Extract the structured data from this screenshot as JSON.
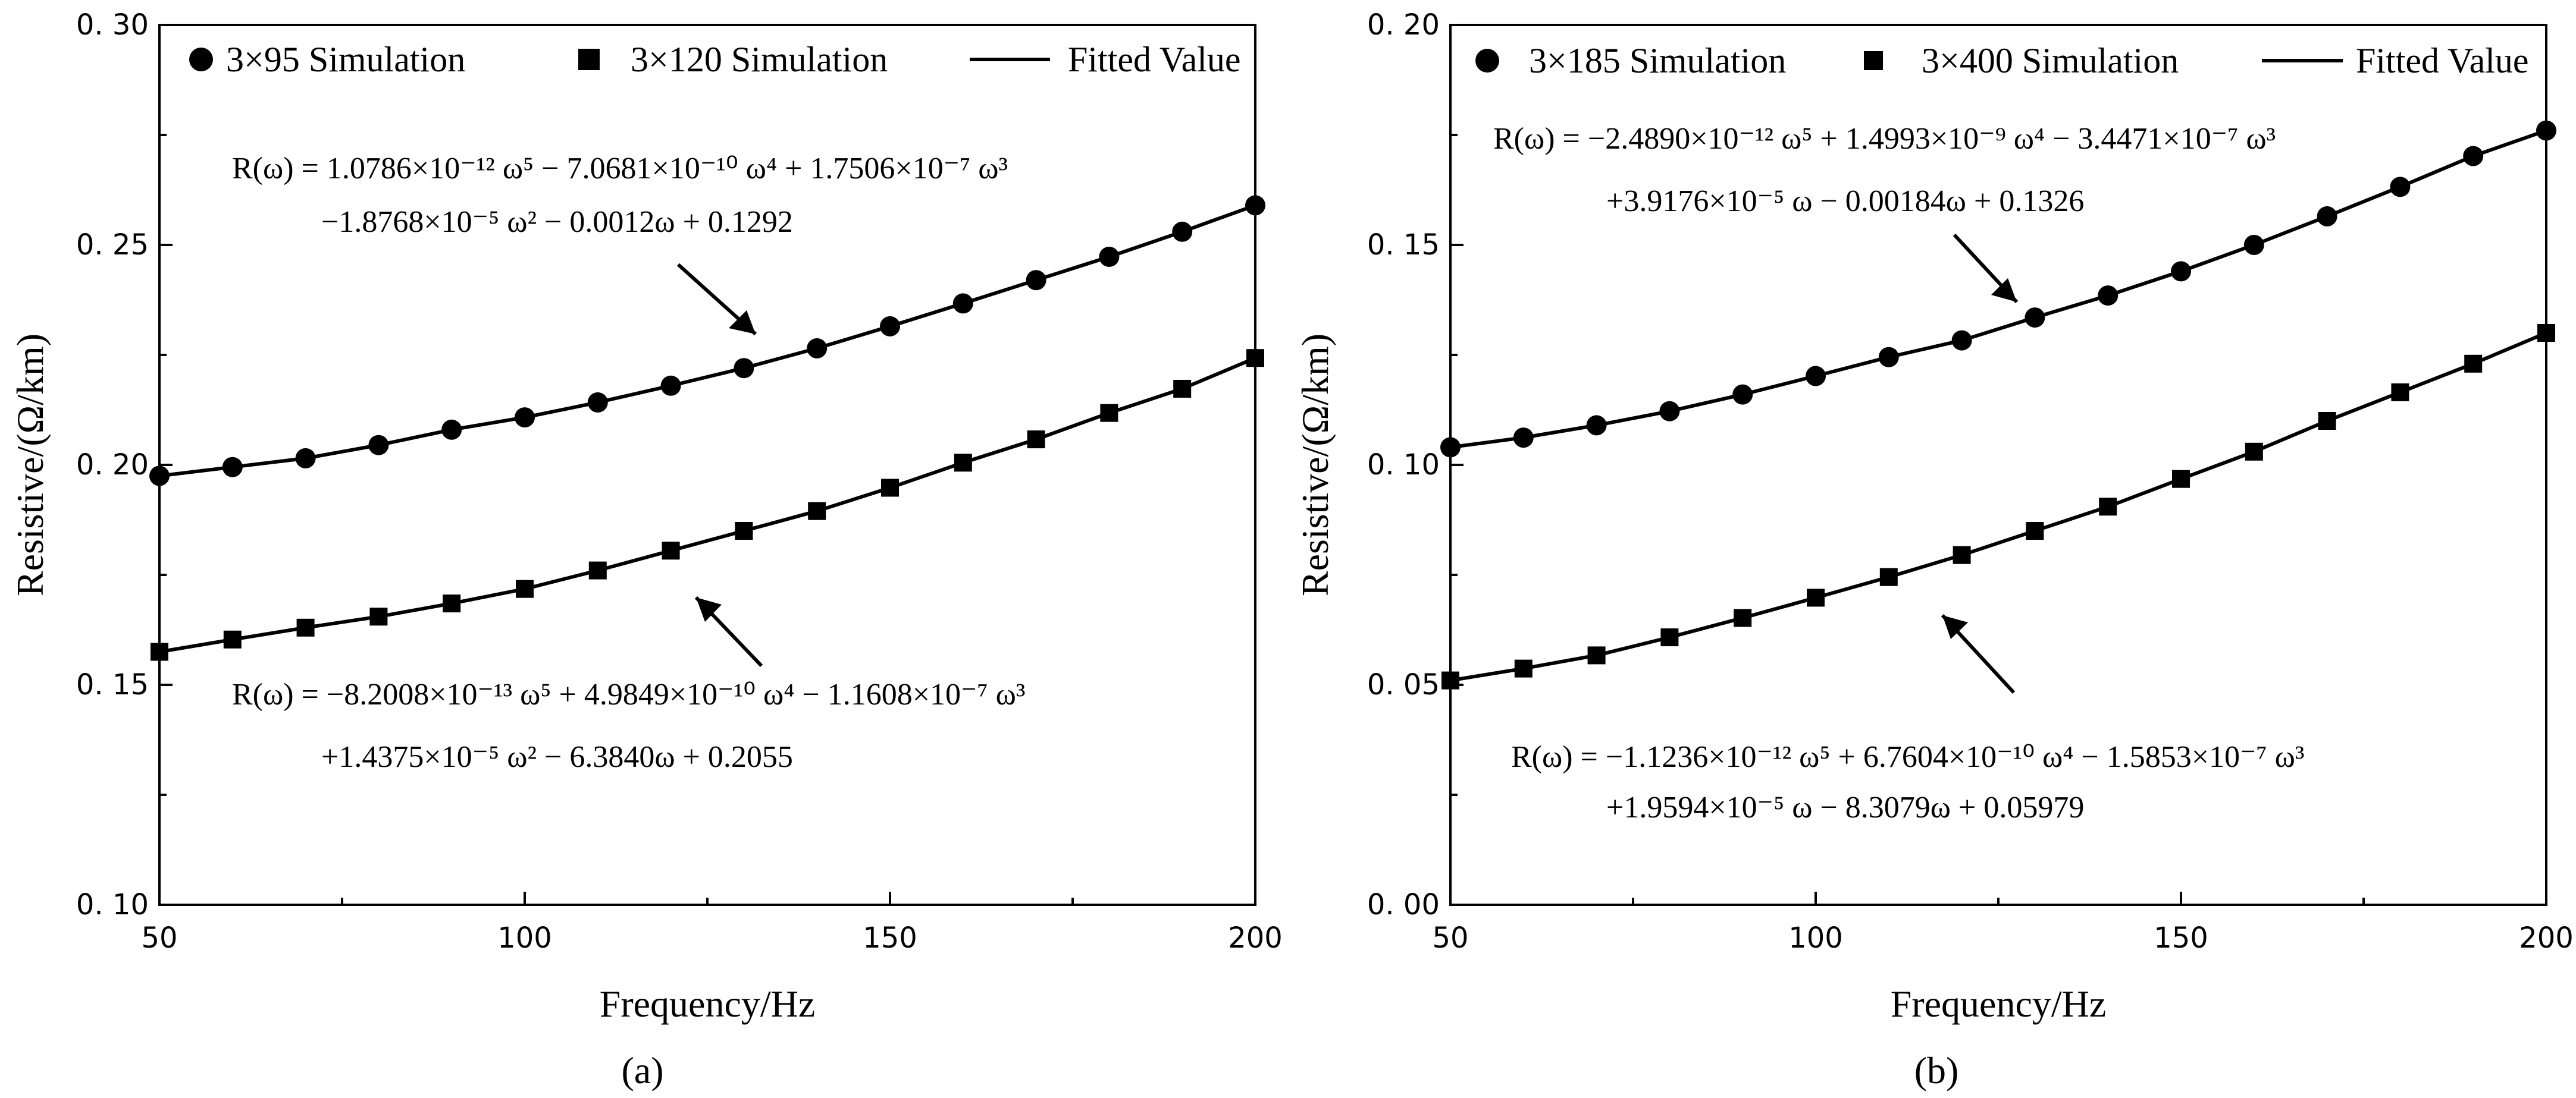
{
  "chart_data": [
    {
      "type": "line",
      "panel_label": "(a)",
      "xlabel": "Frequency/Hz",
      "ylabel": "Resistive/(Ω/km)",
      "xlim": [
        50,
        200
      ],
      "ylim": [
        0.1,
        0.3
      ],
      "xticks": [
        50,
        100,
        150,
        200
      ],
      "yticks": [
        0.1,
        0.15,
        0.2,
        0.25,
        0.3
      ],
      "ytick_labels": [
        "0. 10",
        "0. 15",
        "0. 20",
        "0. 25",
        "0. 30"
      ],
      "x": [
        50,
        60,
        70,
        80,
        90,
        100,
        110,
        120,
        130,
        140,
        150,
        160,
        170,
        180,
        190,
        200
      ],
      "series": [
        {
          "name": "3×95  Simulation",
          "marker": "circle",
          "values": [
            0.1975,
            0.1995,
            0.2015,
            0.2045,
            0.208,
            0.2108,
            0.2142,
            0.218,
            0.222,
            0.2265,
            0.2315,
            0.2367,
            0.242,
            0.2473,
            0.253,
            0.259
          ]
        },
        {
          "name": "3×120 Simulation",
          "marker": "square",
          "values": [
            0.1575,
            0.1603,
            0.163,
            0.1655,
            0.1685,
            0.1718,
            0.176,
            0.1805,
            0.185,
            0.1895,
            0.1948,
            0.2005,
            0.2058,
            0.2118,
            0.2173,
            0.2243
          ]
        }
      ],
      "legend": [
        "3×95  Simulation",
        "3×120 Simulation",
        "Fitted Value"
      ],
      "annotations": [
        {
          "line1": "R(ω) = 1.0786×10⁻¹² ω⁵ − 7.0681×10⁻¹⁰ ω⁴ + 1.7506×10⁻⁷ ω³",
          "line2": "−1.8768×10⁻⁵ ω² − 0.0012ω + 0.1292"
        },
        {
          "line1": "R(ω) = −8.2008×10⁻¹³ ω⁵ + 4.9849×10⁻¹⁰ ω⁴ − 1.1608×10⁻⁷ ω³",
          "line2": "+1.4375×10⁻⁵ ω² − 6.3840ω + 0.2055"
        }
      ]
    },
    {
      "type": "line",
      "panel_label": "(b)",
      "xlabel": "Frequency/Hz",
      "ylabel": "Resistive/(Ω/km)",
      "xlim": [
        50,
        200
      ],
      "ylim": [
        0.0,
        0.2
      ],
      "xticks": [
        50,
        100,
        150,
        200
      ],
      "yticks": [
        0.0,
        0.05,
        0.1,
        0.15,
        0.2
      ],
      "ytick_labels": [
        "0. 00",
        "0. 05",
        "0. 10",
        "0. 15",
        "0. 20"
      ],
      "x": [
        50,
        60,
        70,
        80,
        90,
        100,
        110,
        120,
        130,
        140,
        150,
        160,
        170,
        180,
        190,
        200
      ],
      "series": [
        {
          "name": "3×185 Simulation",
          "marker": "circle",
          "values": [
            0.104,
            0.1062,
            0.109,
            0.1122,
            0.116,
            0.1202,
            0.1245,
            0.1283,
            0.1335,
            0.1385,
            0.144,
            0.15,
            0.1565,
            0.1632,
            0.1702,
            0.176
          ]
        },
        {
          "name": "3×400 Simulation",
          "marker": "square",
          "values": [
            0.051,
            0.0537,
            0.0567,
            0.0608,
            0.0652,
            0.0698,
            0.0745,
            0.0795,
            0.085,
            0.0905,
            0.0968,
            0.103,
            0.11,
            0.1165,
            0.123,
            0.13
          ]
        }
      ],
      "legend": [
        "3×185 Simulation",
        "3×400 Simulation",
        "Fitted Value"
      ],
      "annotations": [
        {
          "line1": "R(ω) = −2.4890×10⁻¹² ω⁵ + 1.4993×10⁻⁹ ω⁴ − 3.4471×10⁻⁷ ω³",
          "line2": "+3.9176×10⁻⁵ ω − 0.00184ω + 0.1326"
        },
        {
          "line1": "R(ω) = −1.1236×10⁻¹² ω⁵ + 6.7604×10⁻¹⁰ ω⁴ − 1.5853×10⁻⁷ ω³",
          "line2": "+1.9594×10⁻⁵ ω − 8.3079ω + 0.05979"
        }
      ]
    }
  ]
}
